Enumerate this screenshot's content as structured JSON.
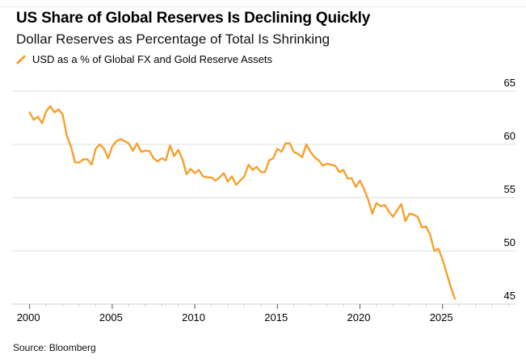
{
  "chart_data": {
    "type": "line",
    "title": "US Share of Global Reserves Is Declining Quickly",
    "subtitle": "Dollar Reserves as Percentage of Total Is Shrinking",
    "xlabel": "",
    "ylabel": "",
    "source": "Source: Bloomberg",
    "legend_position": "top-left",
    "grid": true,
    "xlim": [
      2000,
      2029.4
    ],
    "ylim": [
      45,
      65
    ],
    "x_ticks": [
      2000,
      2005,
      2010,
      2015,
      2020,
      2025
    ],
    "x_tick_labels": [
      "2000",
      "2005",
      "2010",
      "2015",
      "2020",
      "2025"
    ],
    "y_ticks": [
      65,
      60,
      55,
      50,
      45
    ],
    "y_tick_labels": [
      "65",
      "60",
      "55",
      "50",
      "45"
    ],
    "series": [
      {
        "name": "USD as a % of Global FX and Gold Reserve Assets",
        "color": "#f7a02c",
        "x_start": 2000,
        "x_step": 0.25,
        "values": [
          63.0,
          62.3,
          62.6,
          62.0,
          63.1,
          63.6,
          63.0,
          63.3,
          62.8,
          60.8,
          59.8,
          58.3,
          58.3,
          58.6,
          58.6,
          58.1,
          59.6,
          60.0,
          59.6,
          58.7,
          59.8,
          60.3,
          60.5,
          60.3,
          60.1,
          59.4,
          60.1,
          59.3,
          59.4,
          59.4,
          58.7,
          58.4,
          58.7,
          58.5,
          59.9,
          58.9,
          59.5,
          58.6,
          57.2,
          57.7,
          57.3,
          57.6,
          57.0,
          56.9,
          56.9,
          56.6,
          56.9,
          57.3,
          56.5,
          57.0,
          56.2,
          56.6,
          57.0,
          58.1,
          57.6,
          57.9,
          57.4,
          57.4,
          58.5,
          58.7,
          59.6,
          59.3,
          60.1,
          60.1,
          59.3,
          59.1,
          58.8,
          60.0,
          59.3,
          58.8,
          58.5,
          58.0,
          58.2,
          58.1,
          58.0,
          57.4,
          57.6,
          56.8,
          56.8,
          56.0,
          56.6,
          55.8,
          54.8,
          53.5,
          54.5,
          54.2,
          54.3,
          53.7,
          53.2,
          53.8,
          54.4,
          52.8,
          53.5,
          53.4,
          53.2,
          52.2,
          52.3,
          51.5,
          50.0,
          50.2,
          49.2,
          47.9,
          46.6,
          45.5
        ]
      }
    ]
  },
  "colors": {
    "series": "#f7a02c",
    "grid": "#e3e3e3",
    "axis": "#cfcfcf"
  }
}
